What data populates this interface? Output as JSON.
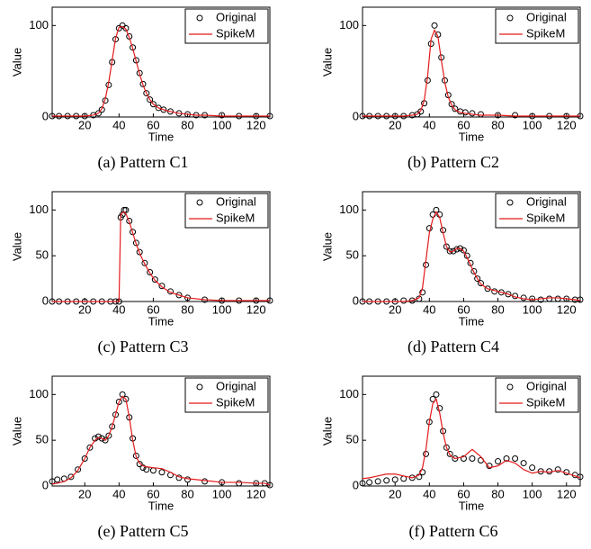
{
  "chart_data": [
    {
      "type": "line",
      "caption": "(a) Pattern C1",
      "xlabel": "Time",
      "ylabel": "Value",
      "xlim": [
        1,
        128
      ],
      "ylim": [
        0,
        120
      ],
      "xticks": [
        20,
        40,
        60,
        80,
        100,
        120
      ],
      "yticks": [
        0,
        100
      ],
      "legend": "upper right",
      "x": [
        1,
        5,
        10,
        15,
        20,
        25,
        28,
        30,
        32,
        34,
        36,
        38,
        40,
        42,
        44,
        46,
        48,
        50,
        52,
        54,
        56,
        58,
        60,
        63,
        66,
        70,
        75,
        80,
        85,
        90,
        100,
        110,
        120,
        128
      ],
      "series": [
        {
          "name": "Original",
          "color": "#000000",
          "marker": "o",
          "values": [
            1,
            1,
            1,
            1,
            1,
            2,
            4,
            8,
            18,
            35,
            60,
            85,
            97,
            100,
            97,
            88,
            76,
            62,
            48,
            36,
            26,
            19,
            14,
            10,
            8,
            6,
            4,
            3,
            2,
            2,
            2,
            1,
            1,
            1
          ]
        },
        {
          "name": "SpikeM",
          "color": "#e41a1c",
          "linestyle": "-",
          "values": [
            1,
            1,
            1,
            1,
            1,
            2,
            4,
            9,
            20,
            38,
            62,
            86,
            98,
            99,
            96,
            87,
            75,
            61,
            47,
            35,
            26,
            19,
            14,
            10,
            8,
            6,
            4,
            3,
            2,
            2,
            1,
            1,
            1,
            1
          ]
        }
      ]
    },
    {
      "type": "line",
      "caption": "(b) Pattern C2",
      "xlabel": "Time",
      "ylabel": "Value",
      "xlim": [
        1,
        128
      ],
      "ylim": [
        0,
        120
      ],
      "xticks": [
        20,
        40,
        60,
        80,
        100,
        120
      ],
      "yticks": [
        0,
        100
      ],
      "legend": "upper right",
      "x": [
        1,
        5,
        10,
        15,
        20,
        25,
        30,
        33,
        35,
        37,
        39,
        41,
        43,
        45,
        47,
        49,
        51,
        53,
        55,
        58,
        61,
        65,
        70,
        80,
        90,
        100,
        110,
        120,
        128
      ],
      "series": [
        {
          "name": "Original",
          "color": "#000000",
          "marker": "o",
          "values": [
            1,
            1,
            1,
            1,
            1,
            1,
            2,
            3,
            6,
            15,
            40,
            80,
            100,
            90,
            65,
            40,
            24,
            14,
            9,
            6,
            5,
            4,
            3,
            2,
            2,
            1,
            1,
            1,
            1
          ]
        },
        {
          "name": "SpikeM",
          "color": "#e41a1c",
          "linestyle": "-",
          "values": [
            1,
            1,
            1,
            1,
            1,
            1,
            2,
            3,
            7,
            18,
            45,
            85,
            95,
            88,
            62,
            38,
            22,
            13,
            8,
            5,
            4,
            3,
            2,
            2,
            1,
            1,
            1,
            1,
            1
          ]
        }
      ]
    },
    {
      "type": "line",
      "caption": "(c) Pattern C3",
      "xlabel": "Time",
      "ylabel": "Value",
      "xlim": [
        1,
        128
      ],
      "ylim": [
        0,
        120
      ],
      "xticks": [
        20,
        40,
        60,
        80,
        100,
        120
      ],
      "yticks": [
        0,
        50,
        100
      ],
      "legend": "upper right",
      "x": [
        1,
        5,
        10,
        15,
        20,
        25,
        30,
        35,
        38,
        40,
        41,
        42,
        43,
        44,
        46,
        48,
        50,
        52,
        55,
        58,
        61,
        65,
        70,
        75,
        80,
        90,
        100,
        110,
        120,
        128
      ],
      "series": [
        {
          "name": "Original",
          "color": "#000000",
          "marker": "o",
          "values": [
            0,
            0,
            0,
            0,
            0,
            0,
            0,
            0,
            0,
            0,
            92,
            95,
            100,
            100,
            88,
            76,
            64,
            54,
            42,
            32,
            24,
            17,
            11,
            7,
            4,
            2,
            1,
            1,
            1,
            1
          ]
        },
        {
          "name": "SpikeM",
          "color": "#e41a1c",
          "linestyle": "-",
          "values": [
            0,
            0,
            0,
            0,
            0,
            0,
            0,
            0,
            0,
            0,
            95,
            97,
            98,
            96,
            87,
            75,
            63,
            53,
            41,
            31,
            23,
            16,
            10,
            7,
            4,
            2,
            1,
            1,
            1,
            1
          ]
        }
      ]
    },
    {
      "type": "line",
      "caption": "(d) Pattern C4",
      "xlabel": "Time",
      "ylabel": "Value",
      "xlim": [
        1,
        128
      ],
      "ylim": [
        0,
        120
      ],
      "xticks": [
        20,
        40,
        60,
        80,
        100,
        120
      ],
      "yticks": [
        0,
        50,
        100
      ],
      "legend": "upper right",
      "x": [
        1,
        5,
        10,
        15,
        20,
        25,
        30,
        34,
        36,
        38,
        40,
        42,
        44,
        46,
        48,
        50,
        52,
        54,
        56,
        58,
        60,
        62,
        64,
        66,
        68,
        70,
        74,
        78,
        82,
        86,
        90,
        95,
        100,
        105,
        110,
        115,
        120,
        125,
        128
      ],
      "series": [
        {
          "name": "Original",
          "color": "#000000",
          "marker": "o",
          "values": [
            0,
            0,
            0,
            0,
            0,
            1,
            1,
            3,
            10,
            40,
            80,
            95,
            100,
            95,
            78,
            60,
            55,
            55,
            57,
            58,
            56,
            50,
            42,
            33,
            25,
            20,
            14,
            11,
            10,
            8,
            6,
            4,
            3,
            2,
            3,
            3,
            3,
            2,
            2
          ]
        },
        {
          "name": "SpikeM",
          "color": "#e41a1c",
          "linestyle": "-",
          "values": [
            0,
            0,
            0,
            0,
            0,
            0,
            1,
            4,
            15,
            45,
            75,
            90,
            98,
            92,
            75,
            60,
            54,
            55,
            58,
            58,
            55,
            48,
            40,
            32,
            25,
            19,
            14,
            12,
            10,
            8,
            5,
            3,
            2,
            3,
            4,
            4,
            3,
            2,
            1
          ]
        }
      ]
    },
    {
      "type": "line",
      "caption": "(e) Pattern C5",
      "xlabel": "Time",
      "ylabel": "Value",
      "xlim": [
        1,
        128
      ],
      "ylim": [
        0,
        120
      ],
      "xticks": [
        20,
        40,
        60,
        80,
        100,
        120
      ],
      "yticks": [
        0,
        50,
        100
      ],
      "legend": "upper right",
      "x": [
        1,
        4,
        8,
        12,
        16,
        20,
        23,
        26,
        28,
        30,
        32,
        34,
        36,
        38,
        40,
        42,
        44,
        46,
        48,
        50,
        52,
        54,
        56,
        60,
        65,
        70,
        75,
        80,
        90,
        100,
        110,
        120,
        125,
        128
      ],
      "series": [
        {
          "name": "Original",
          "color": "#000000",
          "marker": "o",
          "values": [
            5,
            7,
            8,
            10,
            18,
            30,
            42,
            52,
            54,
            52,
            50,
            55,
            65,
            78,
            92,
            100,
            95,
            75,
            52,
            33,
            24,
            20,
            18,
            17,
            15,
            12,
            9,
            7,
            5,
            4,
            3,
            3,
            3,
            1
          ]
        },
        {
          "name": "SpikeM",
          "color": "#e41a1c",
          "linestyle": "-",
          "values": [
            2,
            3,
            5,
            9,
            17,
            30,
            42,
            50,
            53,
            52,
            50,
            55,
            65,
            78,
            92,
            98,
            95,
            75,
            50,
            32,
            25,
            22,
            21,
            20,
            19,
            15,
            10,
            8,
            6,
            4,
            4,
            3,
            3,
            1
          ]
        }
      ]
    },
    {
      "type": "line",
      "caption": "(f) Pattern C6",
      "xlabel": "Time",
      "ylabel": "Value",
      "xlim": [
        1,
        128
      ],
      "ylim": [
        0,
        120
      ],
      "xticks": [
        20,
        40,
        60,
        80,
        100,
        120
      ],
      "yticks": [
        0,
        50,
        100
      ],
      "legend": "upper right",
      "x": [
        1,
        5,
        10,
        15,
        20,
        25,
        30,
        34,
        36,
        38,
        40,
        42,
        44,
        46,
        48,
        50,
        52,
        55,
        60,
        65,
        70,
        75,
        80,
        85,
        90,
        95,
        100,
        105,
        110,
        115,
        120,
        125,
        128
      ],
      "series": [
        {
          "name": "Original",
          "color": "#000000",
          "marker": "o",
          "values": [
            3,
            4,
            5,
            6,
            7,
            8,
            9,
            10,
            15,
            35,
            70,
            95,
            100,
            85,
            60,
            42,
            35,
            30,
            30,
            30,
            28,
            22,
            27,
            30,
            30,
            25,
            20,
            16,
            16,
            18,
            15,
            12,
            10
          ]
        },
        {
          "name": "SpikeM",
          "color": "#e41a1c",
          "linestyle": "-",
          "values": [
            8,
            9,
            11,
            13,
            13,
            11,
            9,
            12,
            20,
            40,
            70,
            90,
            95,
            80,
            58,
            42,
            34,
            30,
            32,
            40,
            32,
            20,
            22,
            28,
            25,
            18,
            14,
            16,
            15,
            17,
            14,
            11,
            9
          ]
        }
      ]
    }
  ]
}
